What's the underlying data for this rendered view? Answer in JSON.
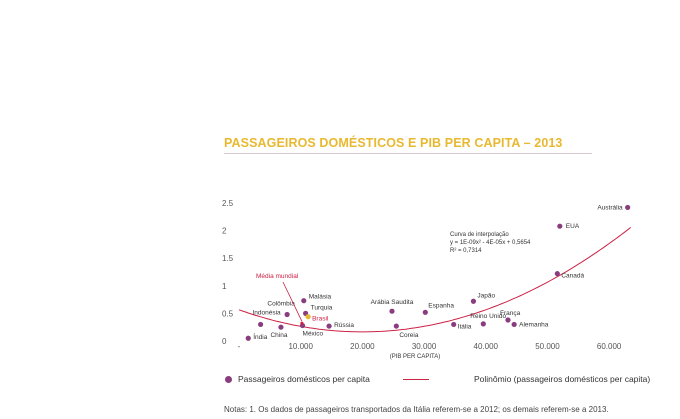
{
  "title": "PASSAGEIROS DOMÉSTICOS E PIB PER CAPITA – 2013",
  "chart_data": {
    "type": "scatter",
    "xlabel": "(PIB PER CAPITA)",
    "ylabel": "",
    "xlim": [
      0,
      65000
    ],
    "ylim": [
      0,
      2.5
    ],
    "x_ticks": [
      0,
      10000,
      20000,
      30000,
      40000,
      50000,
      60000
    ],
    "x_tick_labels": [
      "-",
      "10.000",
      "20.000",
      "30.000",
      "40.000",
      "50.000",
      "60.000"
    ],
    "y_ticks": [
      0,
      0.5,
      1,
      1.5,
      2,
      2.5
    ],
    "y_tick_labels": [
      "0",
      "0.5",
      "1",
      "1.5",
      "2",
      "2.5"
    ],
    "grid": false,
    "series": [
      {
        "name": "Passageiros domésticos per capita",
        "type": "scatter",
        "color": "#8a3d7e",
        "points": [
          {
            "label": "Índia",
            "x": 1500,
            "y": 0.05
          },
          {
            "label": "Indonésia",
            "x": 3500,
            "y": 0.3
          },
          {
            "label": "China",
            "x": 6800,
            "y": 0.25
          },
          {
            "label": "Colômbia",
            "x": 7800,
            "y": 0.48
          },
          {
            "label": "Malásia",
            "x": 10500,
            "y": 0.73
          },
          {
            "label": "Turquia",
            "x": 10800,
            "y": 0.5
          },
          {
            "label": "Brasil",
            "x": 11200,
            "y": 0.44,
            "highlight": true
          },
          {
            "label": "México",
            "x": 10300,
            "y": 0.28
          },
          {
            "label": "Rússia",
            "x": 14600,
            "y": 0.27
          },
          {
            "label": "Arábia Saudita",
            "x": 24800,
            "y": 0.54
          },
          {
            "label": "Espanha",
            "x": 30200,
            "y": 0.52
          },
          {
            "label": "Coreia",
            "x": 25500,
            "y": 0.27
          },
          {
            "label": "Japão",
            "x": 38000,
            "y": 0.72
          },
          {
            "label": "Itália",
            "x": 34800,
            "y": 0.3
          },
          {
            "label": "Reino Unido",
            "x": 39600,
            "y": 0.31
          },
          {
            "label": "França",
            "x": 43600,
            "y": 0.38
          },
          {
            "label": "Alemanha",
            "x": 44600,
            "y": 0.3
          },
          {
            "label": "EUA",
            "x": 52000,
            "y": 2.08
          },
          {
            "label": "Canadá",
            "x": 51600,
            "y": 1.22
          },
          {
            "label": "Austrália",
            "x": 63000,
            "y": 2.42
          }
        ]
      },
      {
        "name": "Polinômio (passageiros domésticos per capita)",
        "type": "line",
        "color": "#cc2244",
        "equation": {
          "a": 1e-09,
          "b": -4e-05,
          "c": 0.5654
        }
      }
    ],
    "annotations": {
      "media_mundial": {
        "text": "Média mundial",
        "x": 10200,
        "y": 0.32,
        "color": "#cc2244"
      },
      "curve_info": [
        "Curva de interpolação",
        "y = 1E-09x² - 4E-05x + 0,5654",
        "R² = 0,7314"
      ]
    },
    "legend_position": "bottom"
  },
  "legend": {
    "points_label": "Passageiros domésticos per capita",
    "line_label": "Polinômio (passageiros domésticos per capita)"
  },
  "note": "Notas: 1. Os dados de passageiros transportados da Itália referem-se a 2012; os demais referem-se a 2013."
}
